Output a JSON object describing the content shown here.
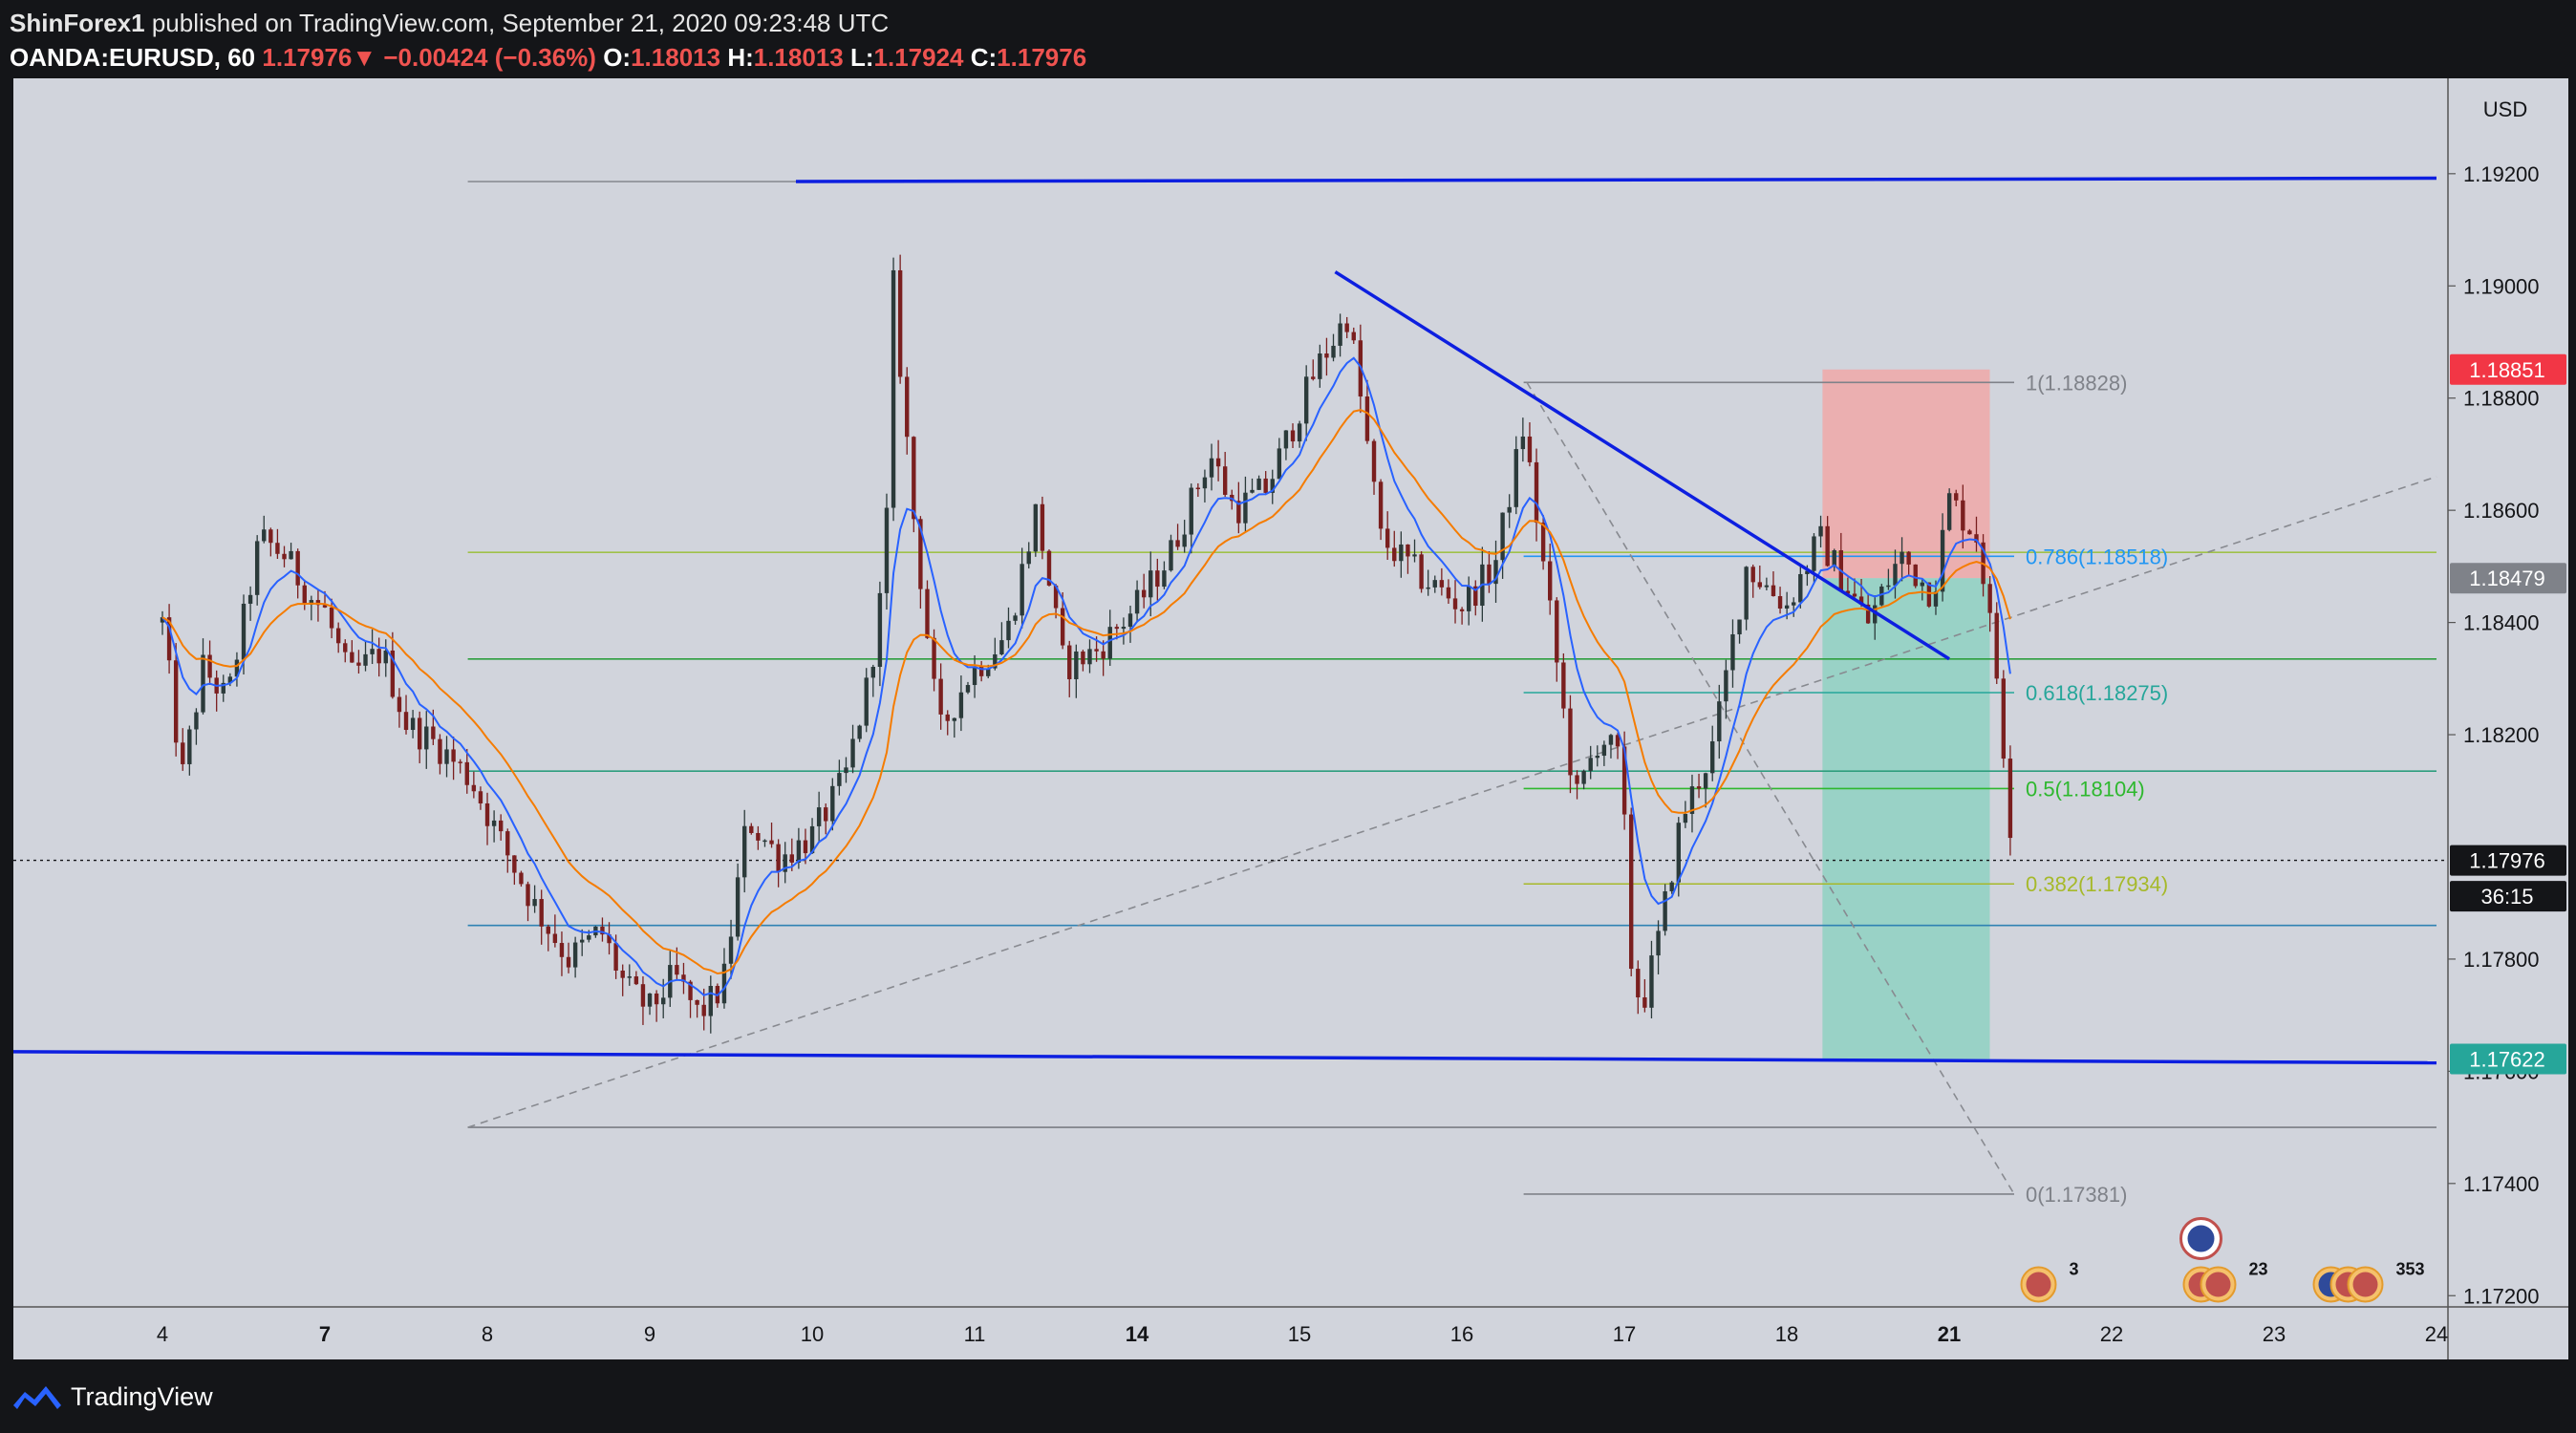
{
  "header": {
    "author": "ShinForex1",
    "published_text": "published on TradingView.com, September 21, 2020 09:23:48 UTC",
    "symbol": "OANDA:EURUSD, 60",
    "last_price": "1.17976",
    "change_arrow": "▼",
    "change": "−0.00424 (−0.36%)",
    "o_label": "O:",
    "o_value": "1.18013",
    "h_label": "H:",
    "h_value": "1.18013",
    "l_label": "L:",
    "l_value": "1.17924",
    "c_label": "C:",
    "c_value": "1.17976"
  },
  "brand": {
    "name": "TradingView",
    "logo_icon": "tradingview-logo-icon"
  },
  "colors": {
    "background": "#d1d4dc",
    "frame": "#141518",
    "candle_up": "#2b3a3a",
    "candle_down": "#7a1f1f",
    "ema_fast": "#2962ff",
    "ema_slow": "#f57c00",
    "trendline": "#0d1fe0",
    "stop_zone": "#f0a8a8",
    "target_zone": "#8fd1c2",
    "label_red": "#f23645",
    "label_green": "#26a69a",
    "label_grey": "#7f8289"
  },
  "chart_data": {
    "type": "candlestick",
    "symbol": "OANDA:EURUSD",
    "interval": "60",
    "currency": "USD",
    "price_axis_ticks": [
      "1.19200",
      "1.19000",
      "1.18800",
      "1.18600",
      "1.18400",
      "1.18200",
      "1.17800",
      "1.17600",
      "1.17400",
      "1.17200"
    ],
    "price_axis_unit": "USD",
    "ylim": [
      1.1718,
      1.1937
    ],
    "time_axis_labels": [
      {
        "label": "4",
        "bold": false
      },
      {
        "label": "7",
        "bold": true
      },
      {
        "label": "8",
        "bold": false
      },
      {
        "label": "9",
        "bold": false
      },
      {
        "label": "10",
        "bold": false
      },
      {
        "label": "11",
        "bold": false
      },
      {
        "label": "14",
        "bold": true
      },
      {
        "label": "15",
        "bold": false
      },
      {
        "label": "16",
        "bold": false
      },
      {
        "label": "17",
        "bold": false
      },
      {
        "label": "18",
        "bold": false
      },
      {
        "label": "21",
        "bold": true
      },
      {
        "label": "22",
        "bold": false
      },
      {
        "label": "23",
        "bold": false
      },
      {
        "label": "24",
        "bold": false
      }
    ],
    "price_path": [
      [
        0,
        1.184
      ],
      [
        0.12,
        1.1812
      ],
      [
        0.25,
        1.1832
      ],
      [
        0.4,
        1.1826
      ],
      [
        0.6,
        1.1855
      ],
      [
        0.75,
        1.1852
      ],
      [
        0.9,
        1.1845
      ],
      [
        1.0,
        1.1842
      ],
      [
        1.15,
        1.183
      ],
      [
        1.35,
        1.1835
      ],
      [
        1.5,
        1.1822
      ],
      [
        1.7,
        1.1818
      ],
      [
        1.9,
        1.1812
      ],
      [
        2.1,
        1.18
      ],
      [
        2.3,
        1.1789
      ],
      [
        2.5,
        1.178
      ],
      [
        2.7,
        1.1785
      ],
      [
        2.85,
        1.1775
      ],
      [
        3.0,
        1.1771
      ],
      [
        3.15,
        1.1777
      ],
      [
        3.3,
        1.177
      ],
      [
        3.45,
        1.1775
      ],
      [
        3.6,
        1.1805
      ],
      [
        3.8,
        1.1798
      ],
      [
        4.0,
        1.1802
      ],
      [
        4.2,
        1.1812
      ],
      [
        4.35,
        1.183
      ],
      [
        4.45,
        1.185
      ],
      [
        4.5,
        1.19
      ],
      [
        4.62,
        1.186
      ],
      [
        4.78,
        1.182
      ],
      [
        4.95,
        1.183
      ],
      [
        5.2,
        1.1838
      ],
      [
        5.38,
        1.186
      ],
      [
        5.55,
        1.1832
      ],
      [
        5.75,
        1.1835
      ],
      [
        6.0,
        1.1843
      ],
      [
        6.2,
        1.1852
      ],
      [
        6.45,
        1.187
      ],
      [
        6.6,
        1.186
      ],
      [
        6.8,
        1.1864
      ],
      [
        7.1,
        1.1885
      ],
      [
        7.3,
        1.1895
      ],
      [
        7.5,
        1.1855
      ],
      [
        7.75,
        1.1848
      ],
      [
        8.0,
        1.1843
      ],
      [
        8.2,
        1.185
      ],
      [
        8.38,
        1.1875
      ],
      [
        8.55,
        1.184
      ],
      [
        8.7,
        1.1808
      ],
      [
        8.85,
        1.182
      ],
      [
        8.98,
        1.1815
      ],
      [
        9.05,
        1.1775
      ],
      [
        9.12,
        1.1773
      ],
      [
        9.2,
        1.1782
      ],
      [
        9.35,
        1.1805
      ],
      [
        9.55,
        1.1818
      ],
      [
        9.75,
        1.185
      ],
      [
        10.0,
        1.1843
      ],
      [
        10.2,
        1.1855
      ],
      [
        10.5,
        1.184
      ],
      [
        10.7,
        1.1852
      ],
      [
        10.9,
        1.1845
      ],
      [
        11.0,
        1.1862
      ],
      [
        11.18,
        1.1855
      ],
      [
        11.3,
        1.1829
      ],
      [
        11.38,
        1.1803
      ]
    ],
    "moving_averages": [
      {
        "color": "#2962ff",
        "lag": 2
      },
      {
        "color": "#f57c00",
        "lag": 5
      }
    ],
    "horizontal_levels": [
      {
        "price": 1.19186,
        "color": "#0d1fe0",
        "x_start": 3.9,
        "x_end": 14.0,
        "width": "thick",
        "y_end": 1.19192
      },
      {
        "price": 1.17635,
        "color": "#0d1fe0",
        "x_start": -0.95,
        "x_end": 14.0,
        "width": "thick",
        "y_end": 1.17615
      },
      {
        "price": 1.19186,
        "color": "#8a8d94",
        "x_start": 1.88,
        "x_end": 4.55,
        "width": "thin"
      },
      {
        "price": 1.18525,
        "color": "#9fc14a",
        "x_start": 1.88,
        "x_end": 14.0,
        "width": "thin"
      },
      {
        "price": 1.18335,
        "color": "#2e9e3f",
        "x_start": 1.88,
        "x_end": 14.0,
        "width": "thin"
      },
      {
        "price": 1.18135,
        "color": "#2e9e7e",
        "x_start": 1.88,
        "x_end": 14.0,
        "width": "thin"
      },
      {
        "price": 1.1786,
        "color": "#2f82b3",
        "x_start": 1.88,
        "x_end": 14.0,
        "width": "thin"
      },
      {
        "price": 1.175,
        "color": "#7a7d84",
        "x_start": 1.88,
        "x_end": 14.0,
        "width": "thin"
      }
    ],
    "trendlines": [
      {
        "from": [
          7.22,
          1.19025
        ],
        "to": [
          11.0,
          1.18335
        ],
        "color": "#0d1fe0",
        "style": "solid"
      },
      {
        "from": [
          1.88,
          1.175
        ],
        "to": [
          14.0,
          1.1866
        ],
        "color": "#888a90",
        "style": "dashed"
      },
      {
        "from": [
          8.4,
          1.18828
        ],
        "to": [
          11.4,
          1.17381
        ],
        "color": "#888a90",
        "style": "dashed"
      }
    ],
    "fibonacci": {
      "x_start": 8.38,
      "x_end": 11.4,
      "levels": [
        {
          "ratio": "1",
          "price": 1.18828,
          "label": "1(1.18828)",
          "color": "#7f8289"
        },
        {
          "ratio": "0.786",
          "price": 1.18518,
          "label": "0.786(1.18518)",
          "color": "#2196f3"
        },
        {
          "ratio": "0.618",
          "price": 1.18275,
          "label": "0.618(1.18275)",
          "color": "#26a69a"
        },
        {
          "ratio": "0.5",
          "price": 1.18104,
          "label": "0.5(1.18104)",
          "color": "#2eb82e"
        },
        {
          "ratio": "0.382",
          "price": 1.17934,
          "label": "0.382(1.17934)",
          "color": "#a6b92a"
        },
        {
          "ratio": "0",
          "price": 1.17381,
          "label": "0(1.17381)",
          "color": "#7f8289"
        }
      ]
    },
    "position_tool": {
      "type": "short",
      "x_start": 10.22,
      "x_end": 11.25,
      "entry": 1.18479,
      "stop": 1.18851,
      "target": 1.17622,
      "stop_color": "#f0a8a8",
      "target_color": "#8fd1c2"
    },
    "price_labels": [
      {
        "text": "1.18851",
        "price": 1.18851,
        "bg": "#f23645",
        "fg": "#ffffff"
      },
      {
        "text": "1.18479",
        "price": 1.18479,
        "bg": "#7f8289",
        "fg": "#ffffff"
      },
      {
        "text": "1.17976",
        "price": 1.17976,
        "bg": "#141518",
        "fg": "#ffffff"
      },
      {
        "text": "36:15",
        "price": 1.17912,
        "bg": "#141518",
        "fg": "#ffffff"
      },
      {
        "text": "1.17622",
        "price": 1.17622,
        "bg": "#26a69a",
        "fg": "#ffffff"
      }
    ],
    "last_price": 1.17976,
    "countdown": "36:15",
    "event_markers": [
      {
        "x": 11.55,
        "icons": [
          "us-flag-icon"
        ],
        "count": "3"
      },
      {
        "x": 12.55,
        "icons": [
          "us-flag-icon",
          "us-flag-icon"
        ],
        "count": "23",
        "extra_count": "3",
        "highlight": "eu-flag-icon"
      },
      {
        "x": 13.35,
        "icons": [
          "eu-flag-icon",
          "us-flag-icon",
          "us-flag-icon"
        ],
        "count": "353",
        "extra_count": "3"
      }
    ]
  }
}
